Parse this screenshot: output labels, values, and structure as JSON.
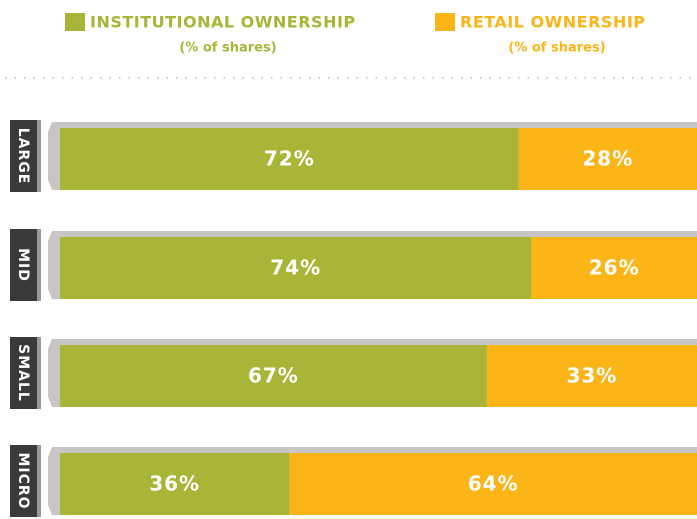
{
  "chart_data": {
    "type": "stacked-bar",
    "categories": [
      "LARGE",
      "MID",
      "SMALL",
      "MICRO"
    ],
    "series": [
      {
        "name": "INSTITUTIONAL OWNERSHIP",
        "note": "(% of shares)",
        "color": "#a8b536",
        "values": [
          72,
          74,
          67,
          36
        ],
        "value_labels": [
          "72%",
          "74%",
          "67%",
          "36%"
        ]
      },
      {
        "name": "RETAIL OWNERSHIP",
        "note": "(% of shares)",
        "color": "#fbb516",
        "values": [
          28,
          26,
          33,
          64
        ],
        "value_labels": [
          "28%",
          "26%",
          "33%",
          "64%"
        ]
      }
    ],
    "xlim": [
      0,
      100
    ]
  }
}
